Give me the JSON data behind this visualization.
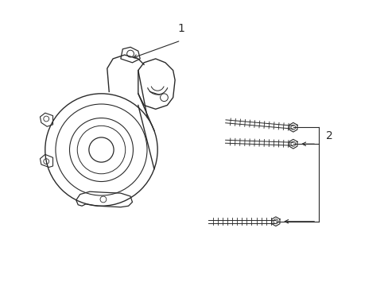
{
  "background_color": "#ffffff",
  "line_color": "#2a2a2a",
  "label_1": "1",
  "label_2": "2",
  "figsize": [
    4.89,
    3.6
  ],
  "dpi": 100,
  "xlim": [
    0,
    10
  ],
  "ylim": [
    0,
    7.35
  ]
}
